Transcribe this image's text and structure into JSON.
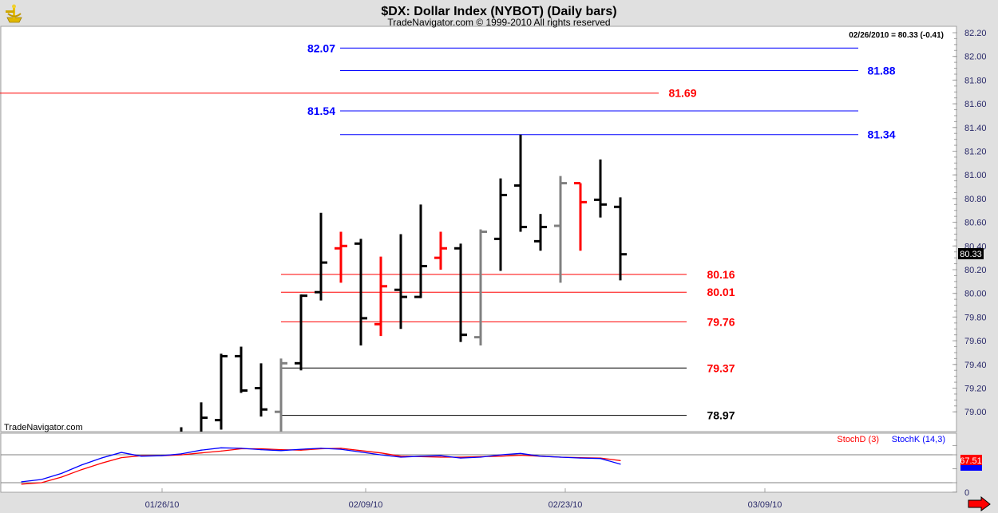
{
  "header": {
    "title": "$DX:  Dollar Index (NYBOT)  (Daily bars)",
    "subtitle": "TradeNavigator.com © 1999-2010 All rights reserved",
    "logo_icon": "sextant-logo-icon"
  },
  "readout": "02/26/2010 = 80.33 (-0.41)",
  "watermark": "TradeNavigator.com",
  "last_price_label": "80.33",
  "colors": {
    "up": "#000000",
    "down": "#ff0000",
    "neutral": "#808080",
    "blue": "#0000ff",
    "red": "#ff0000"
  },
  "chart_data": [
    {
      "type": "ohlc",
      "title": "$DX:  Dollar Index (NYBOT)  (Daily bars)",
      "ylim": [
        78.82,
        82.24
      ],
      "y_ticks": [
        "82.20",
        "82.00",
        "81.80",
        "81.60",
        "81.40",
        "81.20",
        "81.00",
        "80.80",
        "80.60",
        "80.40",
        "80.20",
        "80.00",
        "79.80",
        "79.60",
        "79.40",
        "79.20",
        "79.00"
      ],
      "x_ticks": [
        "01/26/10",
        "02/09/10",
        "02/23/10",
        "03/09/10"
      ],
      "bars": [
        {
          "date": "01/27/10",
          "o": null,
          "h": 78.87,
          "l": null,
          "c": null,
          "color": "black"
        },
        {
          "date": "01/28/10",
          "o": null,
          "h": 79.08,
          "l": null,
          "c": 78.95,
          "color": "black"
        },
        {
          "date": "01/29/10",
          "o": 78.93,
          "h": 79.49,
          "l": 78.85,
          "c": 79.47,
          "color": "black"
        },
        {
          "date": "02/01/10",
          "o": 79.47,
          "h": 79.55,
          "l": 79.16,
          "c": 79.18,
          "color": "black"
        },
        {
          "date": "02/02/10",
          "o": 79.2,
          "h": 79.41,
          "l": 78.96,
          "c": 79.02,
          "color": "black"
        },
        {
          "date": "02/03/10",
          "o": 79.0,
          "h": 79.45,
          "l": null,
          "c": 79.41,
          "color": "gray"
        },
        {
          "date": "02/04/10",
          "o": 79.41,
          "h": 79.99,
          "l": 79.35,
          "c": 79.98,
          "color": "black"
        },
        {
          "date": "02/05/10",
          "o": 80.01,
          "h": 80.68,
          "l": 79.94,
          "c": 80.26,
          "color": "black"
        },
        {
          "date": "02/08/10",
          "o": 80.38,
          "h": 80.52,
          "l": 80.09,
          "c": 80.4,
          "color": "red"
        },
        {
          "date": "02/09/10",
          "o": 80.42,
          "h": 80.46,
          "l": 79.56,
          "c": 79.79,
          "color": "black"
        },
        {
          "date": "02/10/10",
          "o": 79.74,
          "h": 80.31,
          "l": 79.64,
          "c": 80.06,
          "color": "red"
        },
        {
          "date": "02/11/10",
          "o": 80.03,
          "h": 80.5,
          "l": 79.7,
          "c": 79.97,
          "color": "black"
        },
        {
          "date": "02/12/10",
          "o": 79.97,
          "h": 80.75,
          "l": 79.96,
          "c": 80.23,
          "color": "black"
        },
        {
          "date": "02/15/10",
          "o": 80.3,
          "h": 80.52,
          "l": 80.2,
          "c": 80.38,
          "color": "red"
        },
        {
          "date": "02/16/10",
          "o": 80.38,
          "h": 80.42,
          "l": 79.59,
          "c": 79.65,
          "color": "black"
        },
        {
          "date": "02/17/10",
          "o": 79.63,
          "h": 80.54,
          "l": 79.56,
          "c": 80.52,
          "color": "gray"
        },
        {
          "date": "02/18/10",
          "o": 80.46,
          "h": 80.97,
          "l": 80.19,
          "c": 80.83,
          "color": "black"
        },
        {
          "date": "02/19/10",
          "o": 80.91,
          "h": 81.34,
          "l": 80.52,
          "c": 80.56,
          "color": "black"
        },
        {
          "date": "02/22/10",
          "o": 80.44,
          "h": 80.67,
          "l": 80.36,
          "c": 80.56,
          "color": "black"
        },
        {
          "date": "02/23/10",
          "o": 80.57,
          "h": 80.99,
          "l": 80.09,
          "c": 80.93,
          "color": "gray"
        },
        {
          "date": "02/24/10",
          "o": 80.93,
          "h": 80.93,
          "l": 80.36,
          "c": 80.77,
          "color": "red"
        },
        {
          "date": "02/25/10",
          "o": 80.79,
          "h": 81.13,
          "l": 80.64,
          "c": 80.75,
          "color": "black"
        },
        {
          "date": "02/26/10",
          "o": 80.73,
          "h": 80.81,
          "l": 80.11,
          "c": 80.33,
          "color": "black"
        }
      ],
      "levels": [
        {
          "value": 82.07,
          "label": "82.07",
          "color": "blue",
          "label_side": "left",
          "span": "from-02/08"
        },
        {
          "value": 81.88,
          "label": "81.88",
          "color": "blue",
          "label_side": "right",
          "span": "from-02/08"
        },
        {
          "value": 81.69,
          "label": "81.69",
          "color": "red",
          "label_side": "right",
          "span": "full"
        },
        {
          "value": 81.54,
          "label": "81.54",
          "color": "blue",
          "label_side": "left",
          "span": "from-02/08"
        },
        {
          "value": 81.34,
          "label": "81.34",
          "color": "blue",
          "label_side": "right",
          "span": "from-02/08"
        },
        {
          "value": 80.16,
          "label": "80.16",
          "color": "red",
          "label_side": "right",
          "span": "from-02/03"
        },
        {
          "value": 80.01,
          "label": "80.01",
          "color": "red",
          "label_side": "right",
          "span": "from-02/03"
        },
        {
          "value": 79.76,
          "label": "79.76",
          "color": "red",
          "label_side": "right",
          "span": "from-02/03"
        },
        {
          "value": 79.37,
          "label": "79.37",
          "color": "black",
          "label_side": "right",
          "label_color": "red",
          "span": "from-02/03"
        },
        {
          "value": 78.97,
          "label": "78.97",
          "color": "black",
          "label_side": "right",
          "label_color": "black",
          "span": "from-02/03"
        }
      ]
    },
    {
      "type": "line",
      "ylim": [
        0,
        100
      ],
      "ref_lines": [
        80,
        20
      ],
      "y_ticks": [
        "0"
      ],
      "legend": [
        "StochD (3)",
        "StochK (14,3)"
      ],
      "legend_placement": "top-right",
      "current_d_label": "67.51",
      "x": [
        "01/15/10",
        "01/18/10",
        "01/19/10",
        "01/20/10",
        "01/21/10",
        "01/22/10",
        "01/25/10",
        "01/26/10",
        "01/27/10",
        "01/28/10",
        "01/29/10",
        "02/01/10",
        "02/02/10",
        "02/03/10",
        "02/04/10",
        "02/05/10",
        "02/08/10",
        "02/09/10",
        "02/10/10",
        "02/11/10",
        "02/12/10",
        "02/15/10",
        "02/16/10",
        "02/17/10",
        "02/18/10",
        "02/19/10",
        "02/22/10",
        "02/23/10",
        "02/24/10",
        "02/25/10",
        "02/26/10"
      ],
      "series": [
        {
          "name": "StochD (3)",
          "color": "#ff0000",
          "values": [
            17,
            20,
            32,
            48,
            62,
            74,
            78,
            78,
            80,
            84,
            88,
            93,
            93,
            91,
            90,
            93,
            94,
            89,
            84,
            77,
            76,
            75,
            75,
            76,
            77,
            79,
            77,
            75,
            74,
            73,
            67.51
          ]
        },
        {
          "name": "StochK (14,3)",
          "color": "#0000ff",
          "values": [
            22,
            27,
            40,
            58,
            73,
            85,
            77,
            78,
            82,
            90,
            95,
            94,
            91,
            89,
            92,
            94,
            92,
            86,
            80,
            75,
            77,
            78,
            73,
            75,
            80,
            83,
            77,
            75,
            73,
            72,
            60
          ]
        }
      ]
    }
  ]
}
